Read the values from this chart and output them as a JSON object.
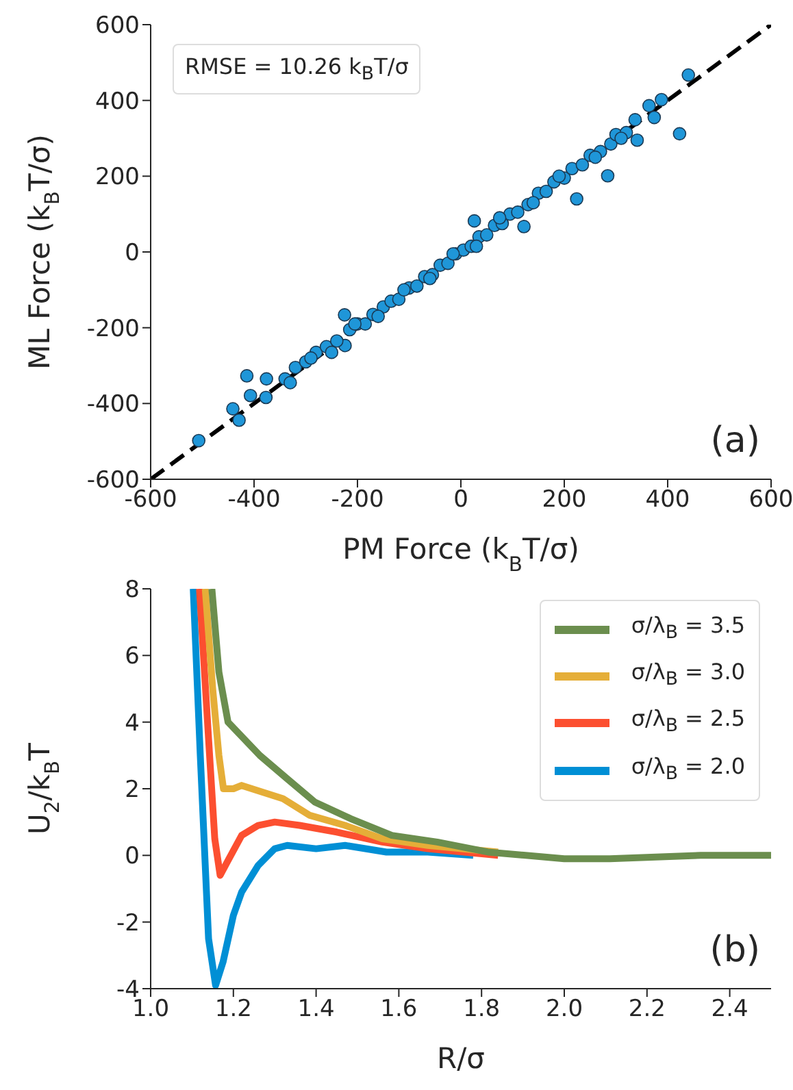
{
  "chart_data": [
    {
      "type": "scatter",
      "xlabel": "PM Force (k$_{B}$T/σ)",
      "ylabel": "ML Force (k$_{B}$T/σ)",
      "annotations": [
        "RMSE =  10.26 k$_{B}$T/σ",
        "(a)"
      ],
      "xlim": [
        -600,
        600
      ],
      "ylim": [
        -600,
        600
      ],
      "xticks": [
        -600,
        -400,
        -200,
        0,
        200,
        400,
        600
      ],
      "yticks": [
        -600,
        -400,
        -200,
        0,
        200,
        400,
        600
      ],
      "legend": false,
      "series": [
        {
          "type": "line",
          "color": "#000000",
          "line_style": "dashed",
          "marker": "none",
          "x": [
            -600,
            600
          ],
          "values": [
            -600,
            600
          ]
        },
        {
          "color": "#1f96d8",
          "marker": "circle",
          "x": [
            440,
            423,
            -507,
            -414,
            -441,
            -429,
            -407,
            -376,
            -377,
            224,
            284,
            341,
            388,
            364,
            374,
            337,
            122,
            -225,
            -224,
            26,
            -340,
            -320,
            -300,
            -280,
            -260,
            -240,
            -215,
            -200,
            -185,
            -170,
            -150,
            -135,
            -120,
            -100,
            -85,
            -70,
            -55,
            -40,
            -25,
            -10,
            5,
            20,
            35,
            50,
            65,
            80,
            95,
            110,
            130,
            150,
            165,
            180,
            200,
            215,
            235,
            250,
            270,
            290,
            300,
            320,
            -330,
            -290,
            -250,
            -205,
            -160,
            -110,
            -60,
            -15,
            30,
            75,
            140,
            190,
            260,
            310
          ],
          "values": [
            467,
            312,
            -498,
            -327,
            -414,
            -444,
            -379,
            -335,
            -384,
            140,
            201,
            295,
            402,
            386,
            355,
            349,
            67,
            -166,
            -247,
            82,
            -335,
            -305,
            -290,
            -265,
            -250,
            -235,
            -205,
            -190,
            -190,
            -165,
            -145,
            -130,
            -125,
            -95,
            -90,
            -65,
            -60,
            -35,
            -30,
            -5,
            5,
            15,
            40,
            45,
            70,
            75,
            100,
            105,
            125,
            155,
            160,
            185,
            195,
            220,
            230,
            255,
            265,
            285,
            310,
            315,
            -345,
            -280,
            -265,
            -190,
            -170,
            -100,
            -70,
            -5,
            15,
            90,
            130,
            200,
            250,
            300
          ]
        }
      ]
    },
    {
      "type": "line",
      "xlabel": "R/σ",
      "ylabel": "U$_{2}$/k$_{B}$T",
      "annotations": [
        "(b)"
      ],
      "xlim": [
        1.0,
        2.5
      ],
      "ylim": [
        -4,
        8
      ],
      "xticks": [
        {
          "value": 1.0,
          "label": "1.0"
        },
        1.2,
        1.4,
        1.6,
        1.8,
        {
          "value": 2.0,
          "label": "2.0"
        },
        2.2,
        2.4
      ],
      "yticks": [
        -4,
        -2,
        0,
        2,
        4,
        6,
        8
      ],
      "legend": "top right",
      "marker": "none",
      "line_style": "solid",
      "series": [
        {
          "name": "σ/λ$_{B}$ = 3.5",
          "color": "#6b8e4e",
          "x": [
            1.148,
            1.165,
            1.187,
            1.264,
            1.33,
            1.397,
            1.484,
            1.583,
            1.693,
            1.815,
            2.0,
            2.11,
            2.33,
            2.5
          ],
          "values": [
            8,
            5.5,
            4.0,
            3.0,
            2.3,
            1.6,
            1.1,
            0.6,
            0.4,
            0.1,
            -0.1,
            -0.1,
            0,
            0
          ]
        },
        {
          "name": "σ/λ$_{B}$ = 3.0",
          "color": "#e5ae38",
          "x": [
            1.132,
            1.15,
            1.165,
            1.176,
            1.2,
            1.22,
            1.32,
            1.385,
            1.47,
            1.56,
            1.67,
            1.84
          ],
          "values": [
            8,
            5,
            3,
            2.0,
            2.0,
            2.1,
            1.7,
            1.2,
            0.9,
            0.5,
            0.3,
            0.1
          ]
        },
        {
          "name": "σ/λ$_{B}$ = 2.5",
          "color": "#fc4f30",
          "x": [
            1.118,
            1.14,
            1.155,
            1.168,
            1.185,
            1.22,
            1.26,
            1.3,
            1.36,
            1.45,
            1.56,
            1.67,
            1.84
          ],
          "values": [
            8,
            3.5,
            0.5,
            -0.6,
            -0.2,
            0.6,
            0.9,
            1.0,
            0.9,
            0.7,
            0.4,
            0.2,
            0
          ]
        },
        {
          "name": "σ/λ$_{B}$ = 2.0",
          "color": "#008fd5",
          "x": [
            1.103,
            1.12,
            1.14,
            1.157,
            1.175,
            1.2,
            1.22,
            1.26,
            1.3,
            1.33,
            1.4,
            1.47,
            1.57,
            1.67,
            1.78
          ],
          "values": [
            8,
            3,
            -2.5,
            -3.9,
            -3.2,
            -1.8,
            -1.1,
            -0.3,
            0.2,
            0.3,
            0.2,
            0.3,
            0.1,
            0.1,
            0
          ]
        }
      ]
    }
  ]
}
